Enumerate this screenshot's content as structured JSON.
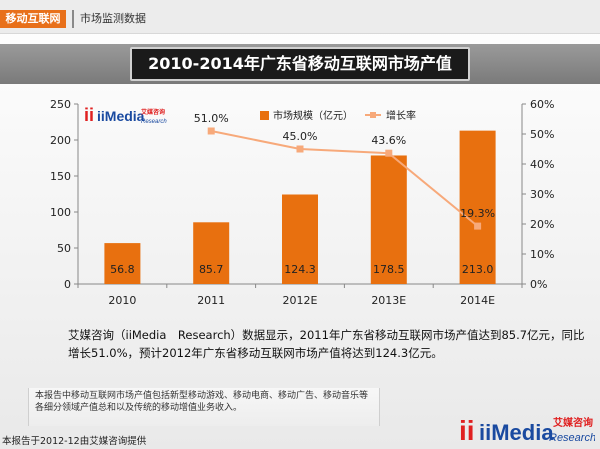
{
  "header": {
    "section_tag": "移动互联网",
    "section_sub": "市场监测数据",
    "title": "2010-2014年广东省移动互联网市场产值"
  },
  "chart_logo": {
    "brand": "iiMedia",
    "cn": "艾媒咨询",
    "en": "Research"
  },
  "chart_data": {
    "type": "bar",
    "categories": [
      "2010",
      "2011",
      "2012E",
      "2013E",
      "2014E"
    ],
    "series": [
      {
        "name": "市场规模（亿元）",
        "type": "bar",
        "values": [
          56.8,
          85.7,
          124.3,
          178.5,
          213.0
        ],
        "labels": [
          "56.8",
          "85.7",
          "124.3",
          "178.5",
          "213.0"
        ],
        "color": "#e8700f"
      },
      {
        "name": "增长率",
        "type": "line",
        "axis": "right",
        "values": [
          null,
          51.0,
          45.0,
          43.6,
          19.3
        ],
        "labels": [
          "",
          "51.0%",
          "45.0%",
          "43.6%",
          "19.3%"
        ],
        "color": "#f7a97a"
      }
    ],
    "y_left": {
      "min": 0,
      "max": 250,
      "ticks": [
        "0",
        "50",
        "100",
        "150",
        "200",
        "250"
      ]
    },
    "y_right": {
      "min": 0,
      "max": 60,
      "ticks": [
        "0%",
        "10%",
        "20%",
        "30%",
        "40%",
        "50%",
        "60%"
      ]
    },
    "legend_position": "top-right",
    "grid": false
  },
  "description": "艾媒咨询（iiMedia　Research）数据显示，2011年广东省移动互联网市场产值达到85.7亿元，同比增长51.0%，预计2012年广东省移动互联网市场产值将达到124.3亿元。",
  "note": "本报告中移动互联网市场产值包括新型移动游戏、移动电商、移动广告、移动音乐等各细分领域产值总和以及传统的移动增值业务收入。",
  "footer": "本报告于2012-12由艾媒咨询提供",
  "brand_logo": {
    "main": "iiMedia",
    "cn": "艾媒咨询",
    "en": "Research"
  }
}
